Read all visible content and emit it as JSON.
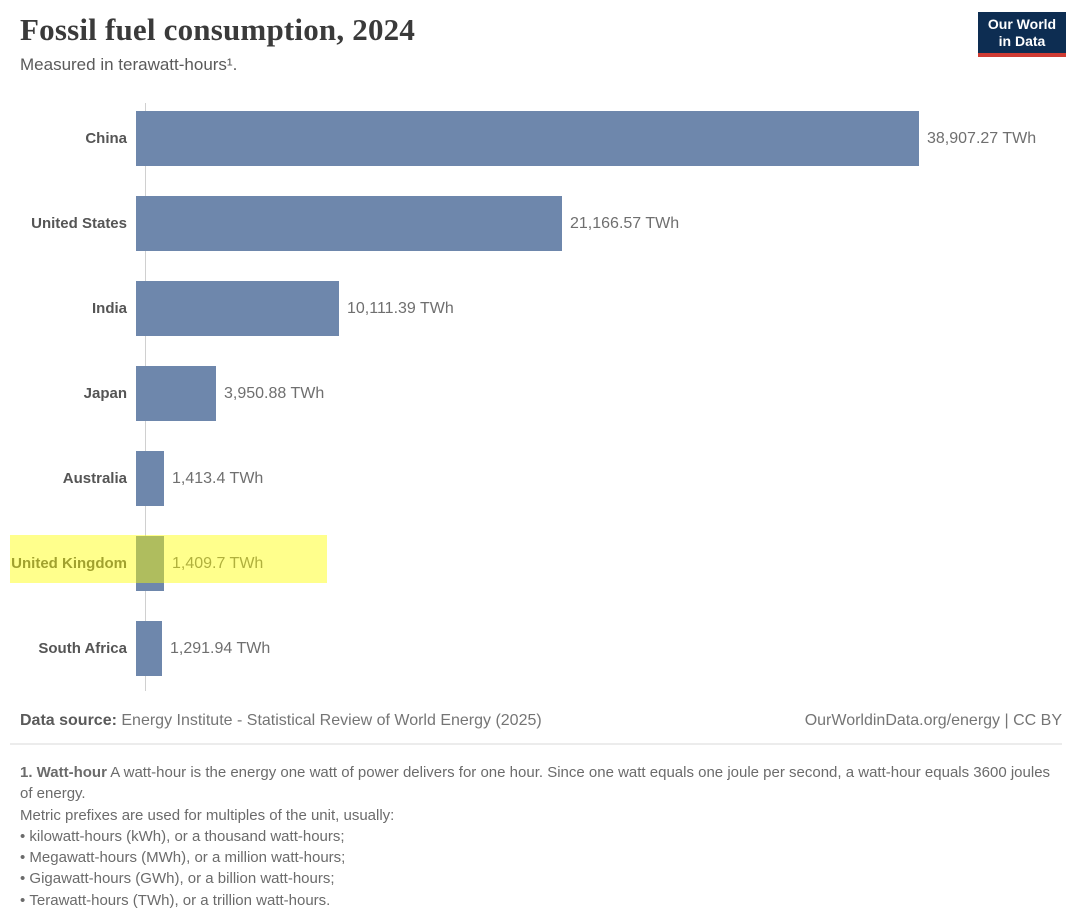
{
  "header": {
    "title": "Fossil fuel consumption, 2024",
    "subtitle": "Measured in terawatt-hours¹."
  },
  "logo": {
    "line1": "Our World",
    "line2": "in Data",
    "bg_color": "#0d2d52",
    "accent_color": "#cf3b33"
  },
  "chart_data": {
    "type": "bar",
    "orientation": "horizontal",
    "title": "Fossil fuel consumption, 2024",
    "unit": "TWh",
    "categories": [
      "China",
      "United States",
      "India",
      "Japan",
      "Australia",
      "United Kingdom",
      "South Africa"
    ],
    "values": [
      38907.27,
      21166.57,
      10111.39,
      3950.88,
      1413.4,
      1409.7,
      1291.94
    ],
    "value_labels": [
      "38,907.27 TWh",
      "21,166.57 TWh",
      "10,111.39 TWh",
      "3,950.88 TWh",
      "1,413.4 TWh",
      "1,409.7 TWh",
      "1,291.94 TWh"
    ],
    "xlim": [
      0,
      38907.27
    ],
    "x_axis_visible": false,
    "grid": false,
    "legend": "none",
    "bar_color": "#6e87ac",
    "highlighted_category": "United Kingdom",
    "highlight_color": "rgba(255,255,0,0.45)"
  },
  "footer": {
    "datasource_label": "Data source:",
    "datasource_text": "Energy Institute - Statistical Review of World Energy (2025)",
    "link_text": "OurWorldinData.org/energy | CC BY"
  },
  "footnote": {
    "term": "1. Watt-hour",
    "definition": "A watt-hour is the energy one watt of power delivers for one hour. Since one watt equals one joule per second, a watt-hour equals 3600 joules of energy.",
    "prefix_line": "Metric prefixes are used for multiples of the unit, usually:",
    "bullets": [
      "kilowatt-hours (kWh), or a thousand watt-hours;",
      "Megawatt-hours (MWh), or a million watt-hours;",
      "Gigawatt-hours (GWh), or a billion watt-hours;",
      "Terawatt-hours (TWh), or a trillion watt-hours."
    ]
  }
}
